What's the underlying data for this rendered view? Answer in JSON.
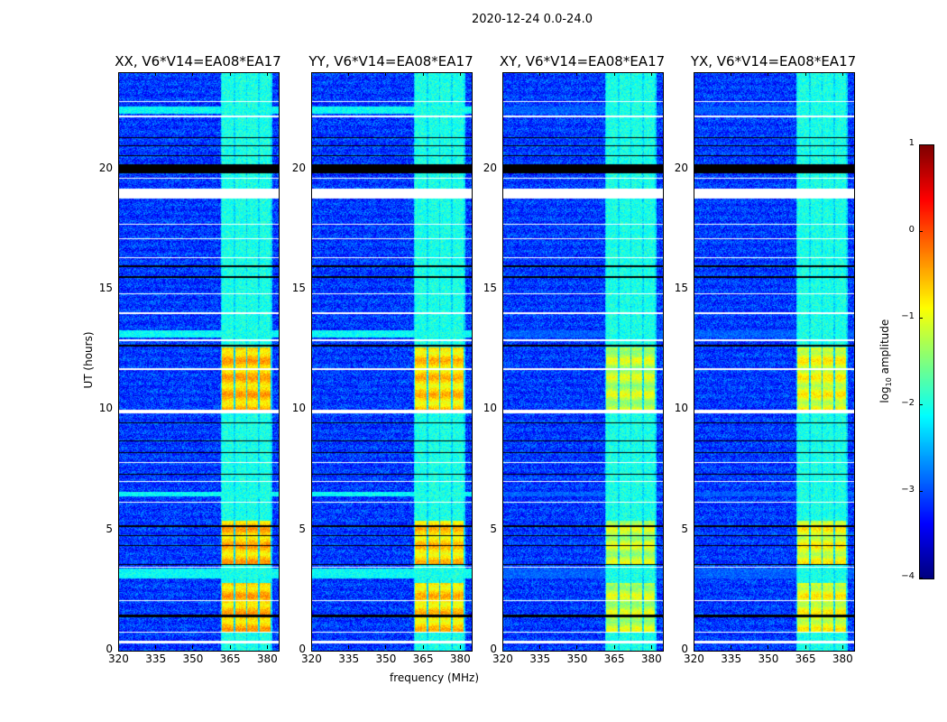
{
  "chart_data": {
    "type": "heatmap",
    "title": "2020-12-24 0.0-24.0",
    "xlabel": "frequency (MHz)",
    "ylabel": "UT (hours)",
    "xlim": [
      320,
      384.4
    ],
    "ylim": [
      0,
      24
    ],
    "xticks": [
      320,
      335,
      350,
      365,
      380
    ],
    "yticks": [
      0,
      5,
      10,
      15,
      20
    ],
    "panels": [
      {
        "title": "XX, V6*V14=EA08*EA17",
        "rfi_level": -0.6,
        "bright_band_level": -2.1
      },
      {
        "title": "YY, V6*V14=EA08*EA17",
        "rfi_level": -0.7,
        "bright_band_level": -2.1
      },
      {
        "title": "XY, V6*V14=EA08*EA17",
        "rfi_level": -1.2,
        "bright_band_level": -2.9
      },
      {
        "title": "YX, V6*V14=EA08*EA17",
        "rfi_level": -1.0,
        "bright_band_level": -2.9
      }
    ],
    "background_level": -3.1,
    "rfi_band_level": -2.0,
    "rfi_subbands_mhz": [
      [
        361.5,
        366.2
      ],
      [
        366.8,
        371.2
      ],
      [
        371.8,
        376.2
      ],
      [
        376.8,
        381.2
      ]
    ],
    "rfi_strong_hours": [
      [
        0.8,
        2.8
      ],
      [
        3.6,
        5.4
      ],
      [
        10.0,
        12.6
      ]
    ],
    "bright_hours": [
      [
        3.0,
        3.4
      ],
      [
        6.4,
        6.6
      ],
      [
        13.0,
        13.3
      ],
      [
        22.3,
        22.6
      ]
    ],
    "flagged_hours": [
      [
        0.3,
        0.4
      ],
      [
        0.75,
        0.8
      ],
      [
        2.05,
        2.1
      ],
      [
        3.45,
        3.5
      ],
      [
        6.15,
        6.2
      ],
      [
        7.0,
        7.05
      ],
      [
        7.8,
        7.85
      ],
      [
        9.85,
        10.0
      ],
      [
        11.65,
        11.75
      ],
      [
        12.85,
        12.95
      ],
      [
        14.0,
        14.05
      ],
      [
        14.8,
        14.85
      ],
      [
        16.3,
        16.35
      ],
      [
        17.1,
        17.15
      ],
      [
        17.7,
        17.75
      ],
      [
        18.8,
        19.2
      ],
      [
        19.6,
        19.65
      ],
      [
        22.15,
        22.25
      ],
      [
        22.8,
        22.85
      ]
    ],
    "dropout_hours": [
      [
        1.4,
        1.5
      ],
      [
        3.55,
        3.6
      ],
      [
        4.35,
        4.4
      ],
      [
        4.75,
        4.8
      ],
      [
        5.15,
        5.2
      ],
      [
        7.3,
        7.35
      ],
      [
        8.2,
        8.25
      ],
      [
        8.7,
        8.75
      ],
      [
        9.45,
        9.5
      ],
      [
        12.65,
        12.72
      ],
      [
        15.5,
        15.55
      ],
      [
        15.95,
        16.0
      ],
      [
        19.85,
        20.2
      ],
      [
        20.55,
        20.6
      ],
      [
        20.95,
        21.0
      ],
      [
        21.3,
        21.35
      ]
    ],
    "colorbar": {
      "label": "amplitude",
      "label_prefix": "log",
      "label_sub": "10",
      "range": [
        -4,
        1
      ],
      "ticks": [
        "1",
        "0",
        "−1",
        "−2",
        "−3",
        "−4"
      ],
      "tick_values": [
        1,
        0,
        -1,
        -2,
        -3,
        -4
      ],
      "colormap": "jet"
    }
  }
}
